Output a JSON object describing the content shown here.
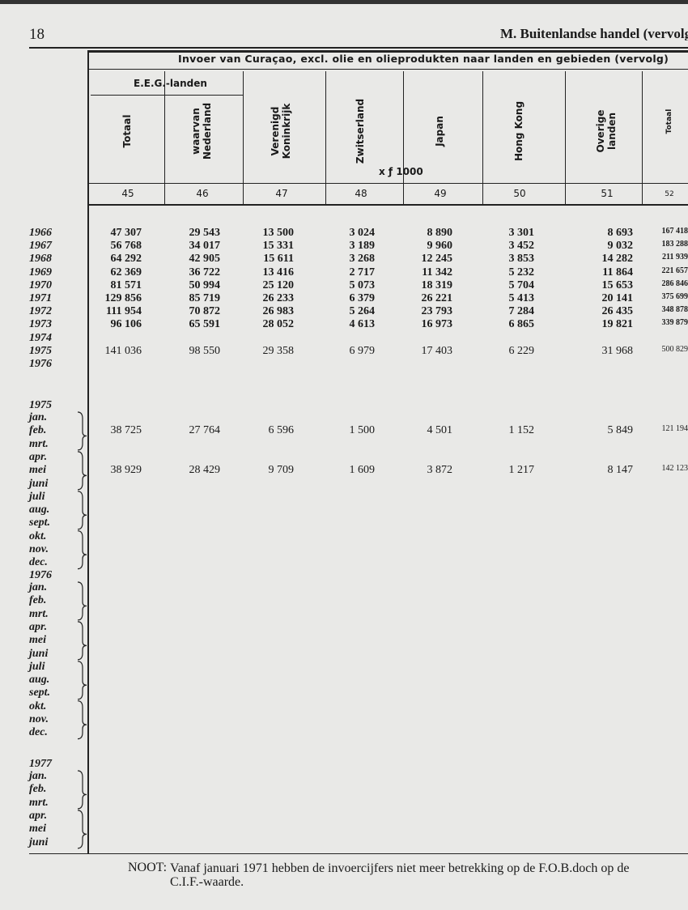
{
  "header": {
    "page_number": "18",
    "section": "M. Buitenlandse handel (vervolg)"
  },
  "table": {
    "title": "Invoer van Curaçao, excl. olie en olieprodukten naar landen en gebieden (vervolg)",
    "group": "E.E.G.-landen",
    "columns": [
      "Totaal",
      "waarvan Nederland",
      "Verenigd Koninkrijk",
      "Zwitserland",
      "Japan",
      "Hong Kong",
      "Overige landen",
      "Totaal"
    ],
    "unit": "x ƒ 1000",
    "column_numbers": [
      "45",
      "46",
      "47",
      "48",
      "49",
      "50",
      "51",
      "52"
    ],
    "years": [
      {
        "label": "1966",
        "values": [
          "47 307",
          "29 543",
          "13 500",
          "3 024",
          "8 890",
          "3 301",
          "8 693",
          "167 418"
        ]
      },
      {
        "label": "1967",
        "values": [
          "56 768",
          "34 017",
          "15 331",
          "3 189",
          "9 960",
          "3 452",
          "9 032",
          "183 288"
        ]
      },
      {
        "label": "1968",
        "values": [
          "64 292",
          "42 905",
          "15 611",
          "3 268",
          "12 245",
          "3 853",
          "14 282",
          "211 939"
        ]
      },
      {
        "label": "1969",
        "values": [
          "62 369",
          "36 722",
          "13 416",
          "2 717",
          "11 342",
          "5 232",
          "11 864",
          "221 657"
        ]
      },
      {
        "label": "1970",
        "values": [
          "81 571",
          "50 994",
          "25 120",
          "5 073",
          "18 319",
          "5 704",
          "15 653",
          "286 846"
        ]
      },
      {
        "label": "1971",
        "values": [
          "129 856",
          "85 719",
          "26 233",
          "6 379",
          "26 221",
          "5 413",
          "20 141",
          "375 699"
        ]
      },
      {
        "label": "1972",
        "values": [
          "111 954",
          "70 872",
          "26 983",
          "5 264",
          "23 793",
          "7 284",
          "26 435",
          "348 878"
        ]
      },
      {
        "label": "1973",
        "values": [
          "96 106",
          "65 591",
          "28 052",
          "4 613",
          "16 973",
          "6 865",
          "19 821",
          "339 879"
        ]
      },
      {
        "label": "1974"
      },
      {
        "label": "1975",
        "values": [
          "141 036",
          "98 550",
          "29 358",
          "6 979",
          "17 403",
          "6 229",
          "31 968",
          "500 829"
        ]
      },
      {
        "label": "1976"
      }
    ],
    "periods": [
      {
        "year": "1975",
        "months": [
          {
            "label": "jan."
          },
          {
            "label": "feb.",
            "values": [
              "38 725",
              "27 764",
              "6 596",
              "1 500",
              "4 501",
              "1 152",
              "5 849",
              "121 194"
            ]
          },
          {
            "label": "mrt."
          },
          {
            "label": "apr."
          },
          {
            "label": "mei",
            "values": [
              "38 929",
              "28 429",
              "9 709",
              "1 609",
              "3 872",
              "1 217",
              "8 147",
              "142 123"
            ]
          },
          {
            "label": "juni"
          },
          {
            "label": "juli"
          },
          {
            "label": "aug."
          },
          {
            "label": "sept."
          },
          {
            "label": "okt."
          },
          {
            "label": "nov."
          },
          {
            "label": "dec."
          }
        ]
      },
      {
        "year": "1976",
        "months": [
          {
            "label": "jan."
          },
          {
            "label": "feb."
          },
          {
            "label": "mrt."
          },
          {
            "label": "apr."
          },
          {
            "label": "mei"
          },
          {
            "label": "juni"
          },
          {
            "label": "juli"
          },
          {
            "label": "aug."
          },
          {
            "label": "sept."
          },
          {
            "label": "okt."
          },
          {
            "label": "nov."
          },
          {
            "label": "dec."
          }
        ]
      },
      {
        "year": "1977",
        "months": [
          {
            "label": "jan."
          },
          {
            "label": "feb."
          },
          {
            "label": "mrt."
          },
          {
            "label": "apr."
          },
          {
            "label": "mei"
          },
          {
            "label": "juni"
          }
        ]
      }
    ]
  },
  "note": {
    "lead": "NOOT:",
    "text": "Vanaf januari 1971 hebben de invoercijfers niet meer betrekking op de F.O.B.doch op de C.I.F.-waarde."
  }
}
